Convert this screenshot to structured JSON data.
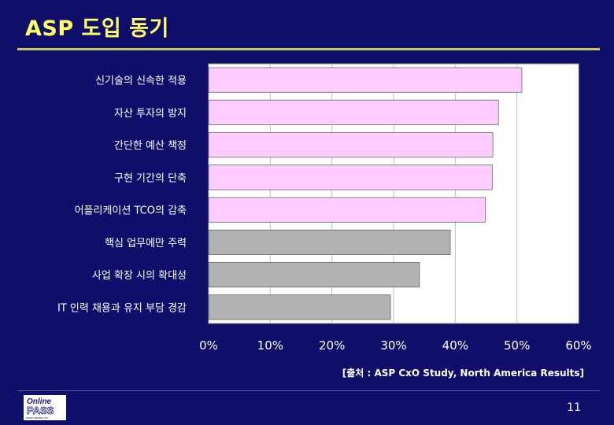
{
  "slide": {
    "title": "ASP 도입 동기",
    "source": "[출처 : ASP CxO Study, North America Results]",
    "page_number": "11"
  },
  "logo": {
    "line1": "Online",
    "line2": "PASS",
    "line3": "www.olpass.net"
  },
  "colors": {
    "background": "#0f0f6b",
    "title": "#ffff66",
    "plot_area": "#ffffff",
    "bar_highlight": "#ffccff",
    "bar_normal": "#b2b2b2"
  },
  "chart_data": {
    "type": "bar",
    "orientation": "horizontal",
    "categories": [
      "신기술의 신속한 적용",
      "자산 투자의 방지",
      "간단한 예산 책정",
      "구현 기간의 단축",
      "어플리케이션 TCO의 감축",
      "핵심 업무에만 주력",
      "사업 확장 시의 확대성",
      "IT 인력 채용과 유지 부담 경감"
    ],
    "values": [
      50.8,
      47.0,
      46.1,
      46.0,
      44.9,
      39.2,
      34.2,
      29.5
    ],
    "highlighted": [
      true,
      true,
      true,
      true,
      true,
      false,
      false,
      false
    ],
    "xlim": [
      0,
      60
    ],
    "xticks": [
      "0%",
      "10%",
      "20%",
      "30%",
      "40%",
      "50%",
      "60%"
    ],
    "xlabel": "",
    "ylabel": "",
    "grid": "vertical",
    "legend": "none"
  }
}
